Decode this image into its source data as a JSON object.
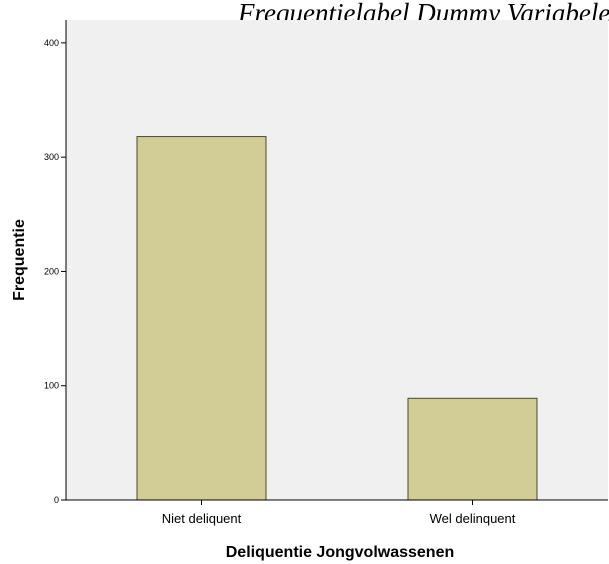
{
  "chart_data": {
    "type": "bar",
    "title": "Frequentielabel Dummy Variabele Delinquentie",
    "xlabel": "Deliquentie Jongvolwassenen",
    "ylabel": "Frequentie",
    "categories": [
      "Niet deliquent",
      "Wel delinquent"
    ],
    "values": [
      318,
      89
    ],
    "ylim": [
      0,
      420
    ],
    "yticks": [
      0,
      100,
      200,
      300,
      400
    ],
    "grid": false,
    "legend": "none",
    "colors": {
      "bar_fill": "#d2cc96",
      "bar_stroke": "#4a4a2a",
      "plot_background": "#f0f0f0",
      "axis": "#000000"
    }
  }
}
